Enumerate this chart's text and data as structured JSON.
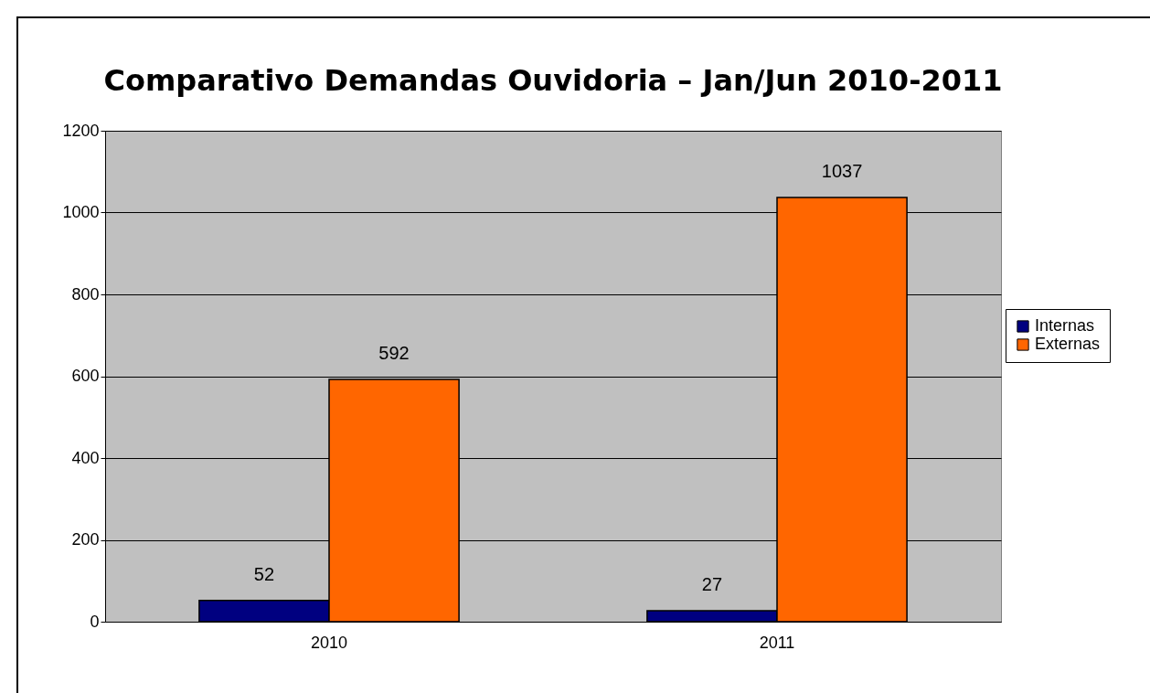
{
  "chart_data": {
    "type": "bar",
    "title": "Comparativo Demandas Ouvidoria – Jan/Jun 2010-2011",
    "categories": [
      "2010",
      "2011"
    ],
    "series": [
      {
        "name": "Internas",
        "color": "#000080",
        "values": [
          52,
          27
        ]
      },
      {
        "name": "Externas",
        "color": "#ff6600",
        "values": [
          592,
          1037
        ]
      }
    ],
    "ylim": [
      0,
      1200
    ],
    "yticks": [
      0,
      200,
      400,
      600,
      800,
      1000,
      1200
    ],
    "grid": "y",
    "legend": "right",
    "data_labels": true
  }
}
